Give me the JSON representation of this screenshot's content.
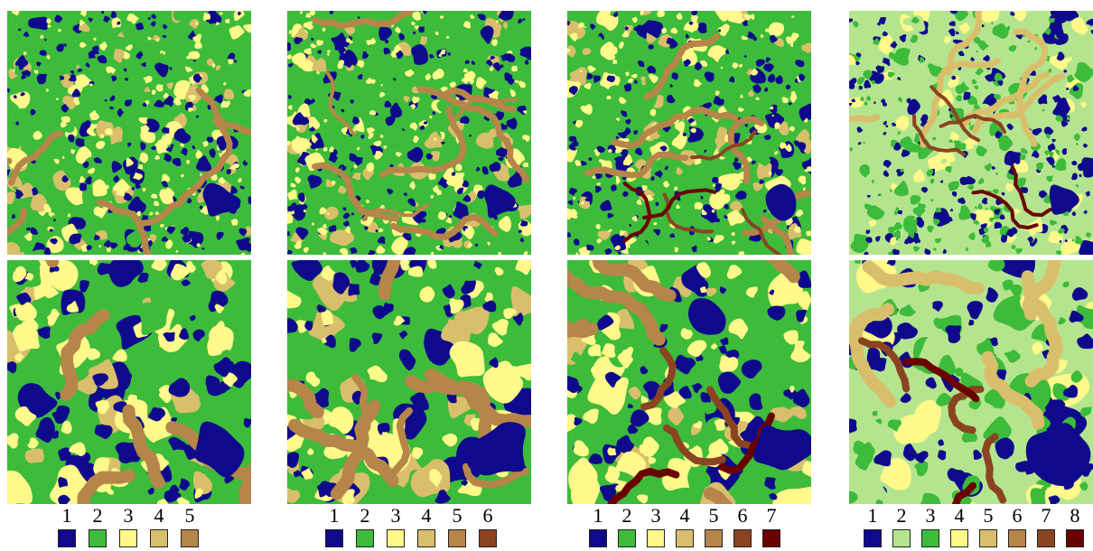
{
  "figure": {
    "columns": [
      {
        "id": "col-1",
        "class_labels": [
          "1",
          "2",
          "3",
          "4",
          "5"
        ],
        "class_colors": [
          "#0f0a8c",
          "#3dbb3a",
          "#fff88a",
          "#d9bf6c",
          "#b6854a"
        ]
      },
      {
        "id": "col-2",
        "class_labels": [
          "1",
          "2",
          "3",
          "4",
          "5",
          "6"
        ],
        "class_colors": [
          "#0f0a8c",
          "#3dbb3a",
          "#fff88a",
          "#d9bf6c",
          "#b6854a",
          "#8b4422"
        ]
      },
      {
        "id": "col-3",
        "class_labels": [
          "1",
          "2",
          "3",
          "4",
          "5",
          "6",
          "7"
        ],
        "class_colors": [
          "#0f0a8c",
          "#3dbb3a",
          "#fff88a",
          "#d9bf6c",
          "#b6854a",
          "#8b4422",
          "#6b0000"
        ]
      },
      {
        "id": "col-4",
        "class_labels": [
          "1",
          "2",
          "3",
          "4",
          "5",
          "6",
          "7",
          "8"
        ],
        "class_colors": [
          "#0f0a8c",
          "#b4e58e",
          "#3dbb3a",
          "#fff88a",
          "#d9bf6c",
          "#b6854a",
          "#8b4422",
          "#6b0000"
        ]
      }
    ],
    "rows": [
      "full-map",
      "zoomed-detail"
    ]
  }
}
